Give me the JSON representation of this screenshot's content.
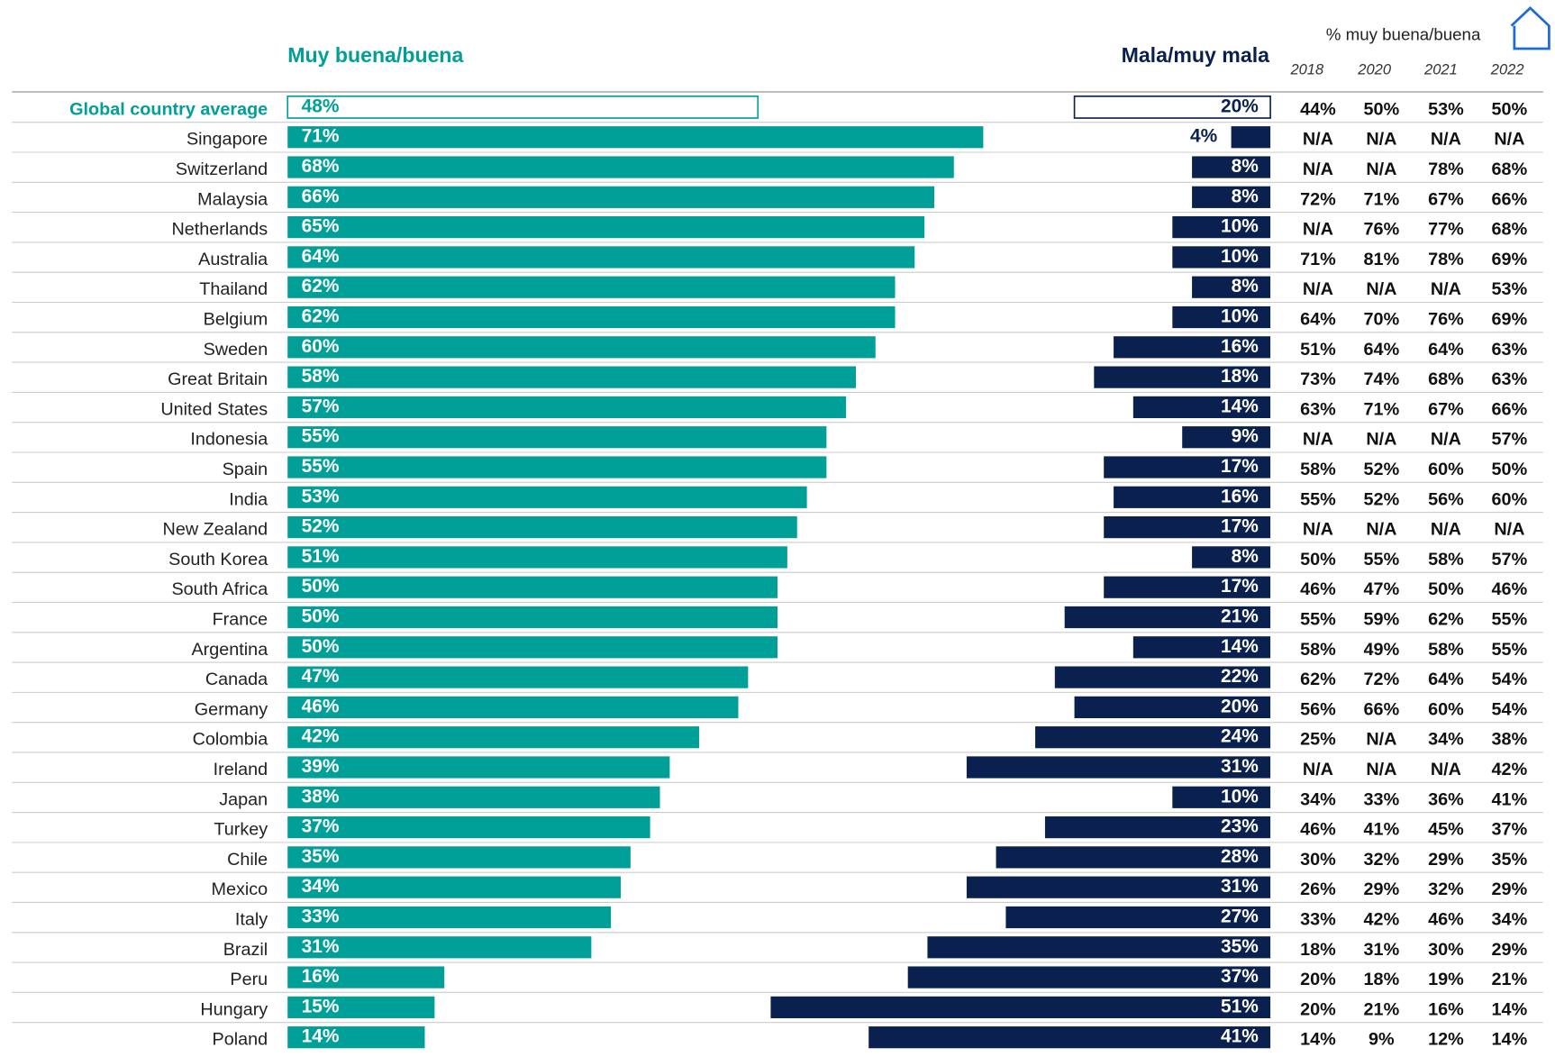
{
  "chart_data": {
    "type": "diverging-bar",
    "categories": [
      "Global country average",
      "Singapore",
      "Switzerland",
      "Malaysia",
      "Netherlands",
      "Australia",
      "Thailand",
      "Belgium",
      "Sweden",
      "Great Britain",
      "United States",
      "Indonesia",
      "Spain",
      "India",
      "New Zealand",
      "South Korea",
      "South Africa",
      "France",
      "Argentina",
      "Canada",
      "Germany",
      "Colombia",
      "Ireland",
      "Japan",
      "Turkey",
      "Chile",
      "Mexico",
      "Italy",
      "Brazil",
      "Peru",
      "Hungary",
      "Poland"
    ],
    "series": [
      {
        "name": "Muy buena/buena",
        "color": "#009f98",
        "values": [
          48,
          71,
          68,
          66,
          65,
          64,
          62,
          62,
          60,
          58,
          57,
          55,
          55,
          53,
          52,
          51,
          50,
          50,
          50,
          47,
          46,
          42,
          39,
          38,
          37,
          35,
          34,
          33,
          31,
          16,
          15,
          14
        ],
        "value_labels": [
          "48%",
          "71%",
          "68%",
          "66%",
          "65%",
          "64%",
          "62%",
          "62%",
          "60%",
          "58%",
          "57%",
          "55%",
          "55%",
          "53%",
          "52%",
          "51%",
          "50%",
          "50%",
          "50%",
          "47%",
          "46%",
          "42%",
          "39%",
          "38%",
          "37%",
          "35%",
          "34%",
          "33%",
          "31%",
          "16%",
          "15%",
          "14%"
        ]
      },
      {
        "name": "Mala/muy mala",
        "color": "#0a2150",
        "values": [
          20,
          4,
          8,
          8,
          10,
          10,
          8,
          10,
          16,
          18,
          14,
          9,
          17,
          16,
          17,
          8,
          17,
          21,
          14,
          22,
          20,
          24,
          31,
          10,
          23,
          28,
          31,
          27,
          35,
          37,
          51,
          41
        ],
        "value_labels": [
          "20%",
          "4%",
          "8%",
          "8%",
          "10%",
          "10%",
          "8%",
          "10%",
          "16%",
          "18%",
          "14%",
          "9%",
          "17%",
          "16%",
          "17%",
          "8%",
          "17%",
          "21%",
          "14%",
          "22%",
          "20%",
          "24%",
          "31%",
          "10%",
          "23%",
          "28%",
          "31%",
          "27%",
          "35%",
          "37%",
          "51%",
          "41%"
        ]
      }
    ]
  },
  "table": {
    "title": "% muy buena/buena",
    "columns": [
      "2018",
      "2020",
      "2021",
      "2022"
    ],
    "rows": [
      [
        "44%",
        "50%",
        "53%",
        "50%"
      ],
      [
        "N/A",
        "N/A",
        "N/A",
        "N/A"
      ],
      [
        "N/A",
        "N/A",
        "78%",
        "68%"
      ],
      [
        "72%",
        "71%",
        "67%",
        "66%"
      ],
      [
        "N/A",
        "76%",
        "77%",
        "68%"
      ],
      [
        "71%",
        "81%",
        "78%",
        "69%"
      ],
      [
        "N/A",
        "N/A",
        "N/A",
        "53%"
      ],
      [
        "64%",
        "70%",
        "76%",
        "69%"
      ],
      [
        "51%",
        "64%",
        "64%",
        "63%"
      ],
      [
        "73%",
        "74%",
        "68%",
        "63%"
      ],
      [
        "63%",
        "71%",
        "67%",
        "66%"
      ],
      [
        "N/A",
        "N/A",
        "N/A",
        "57%"
      ],
      [
        "58%",
        "52%",
        "60%",
        "50%"
      ],
      [
        "55%",
        "52%",
        "56%",
        "60%"
      ],
      [
        "N/A",
        "N/A",
        "N/A",
        "N/A"
      ],
      [
        "50%",
        "55%",
        "58%",
        "57%"
      ],
      [
        "46%",
        "47%",
        "50%",
        "46%"
      ],
      [
        "55%",
        "59%",
        "62%",
        "55%"
      ],
      [
        "58%",
        "49%",
        "58%",
        "55%"
      ],
      [
        "62%",
        "72%",
        "64%",
        "54%"
      ],
      [
        "56%",
        "66%",
        "60%",
        "54%"
      ],
      [
        "25%",
        "N/A",
        "34%",
        "38%"
      ],
      [
        "N/A",
        "N/A",
        "N/A",
        "42%"
      ],
      [
        "34%",
        "33%",
        "36%",
        "41%"
      ],
      [
        "46%",
        "41%",
        "45%",
        "37%"
      ],
      [
        "30%",
        "32%",
        "29%",
        "35%"
      ],
      [
        "26%",
        "29%",
        "32%",
        "29%"
      ],
      [
        "33%",
        "42%",
        "46%",
        "34%"
      ],
      [
        "18%",
        "31%",
        "30%",
        "29%"
      ],
      [
        "20%",
        "18%",
        "19%",
        "21%"
      ],
      [
        "20%",
        "21%",
        "16%",
        "14%"
      ],
      [
        "14%",
        "9%",
        "12%",
        "14%"
      ]
    ]
  }
}
